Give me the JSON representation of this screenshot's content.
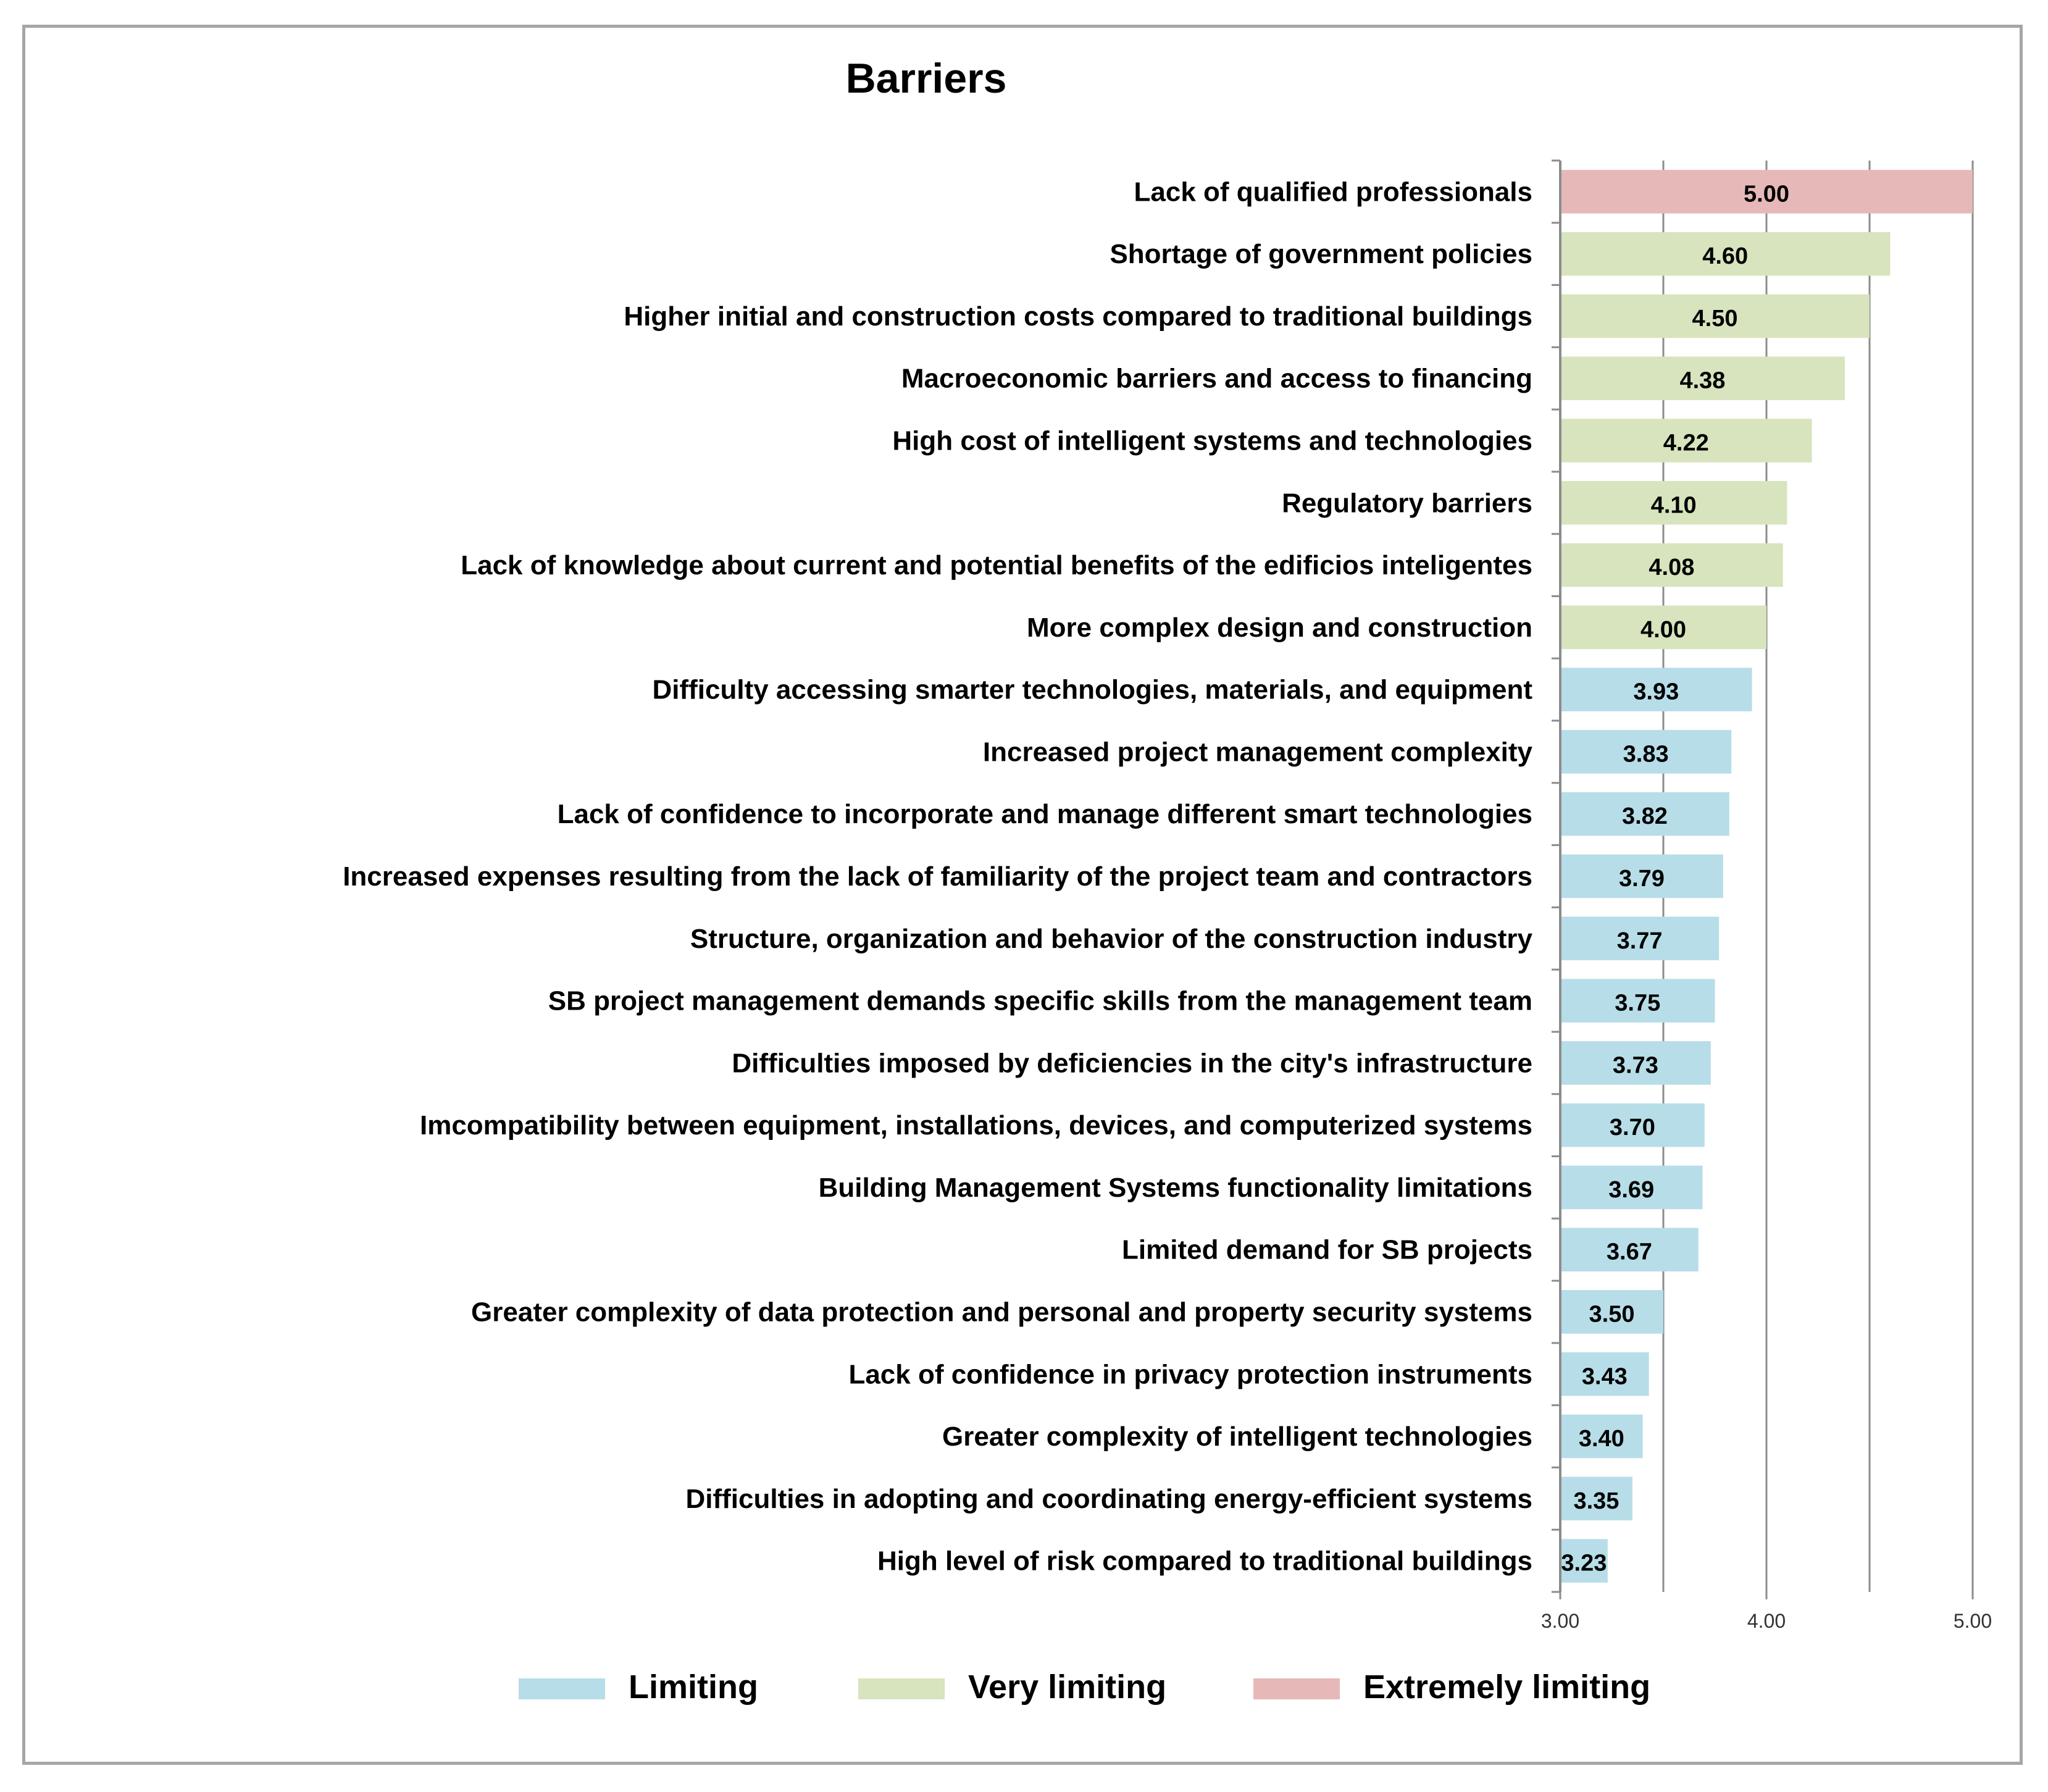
{
  "chart_data": {
    "type": "bar",
    "orientation": "horizontal",
    "title": "Barriers",
    "xlabel": "",
    "ylabel": "",
    "xlim": [
      3.0,
      5.0
    ],
    "ticks": [
      3.0,
      4.0,
      5.0
    ],
    "tick_labels": [
      "3.00",
      "4.00",
      "5.00"
    ],
    "grid": true,
    "legend_position": "bottom",
    "colors": {
      "Limiting": "#b7dde8",
      "Very limiting": "#d7e4bd",
      "Extremely limiting": "#e6b9b8"
    },
    "legend": [
      "Limiting",
      "Very limiting",
      "Extremely limiting"
    ],
    "bars": [
      {
        "label": "Lack of qualified professionals",
        "value": 5.0,
        "value_label": "5.00",
        "category": "Extremely limiting"
      },
      {
        "label": "Shortage of government policies",
        "value": 4.6,
        "value_label": "4.60",
        "category": "Very limiting"
      },
      {
        "label": "Higher initial and construction costs compared to traditional buildings",
        "value": 4.5,
        "value_label": "4.50",
        "category": "Very limiting"
      },
      {
        "label": "Macroeconomic barriers and access to financing",
        "value": 4.38,
        "value_label": "4.38",
        "category": "Very limiting"
      },
      {
        "label": "High cost of  intelligent systems and technologies",
        "value": 4.22,
        "value_label": "4.22",
        "category": "Very limiting"
      },
      {
        "label": "Regulatory barriers",
        "value": 4.1,
        "value_label": "4.10",
        "category": "Very limiting"
      },
      {
        "label": "Lack of knowledge about current and potential benefits of the edificios inteligentes",
        "value": 4.08,
        "value_label": "4.08",
        "category": "Very limiting"
      },
      {
        "label": "More complex design and construction",
        "value": 4.0,
        "value_label": "4.00",
        "category": "Very limiting"
      },
      {
        "label": "Difficulty accessing smarter technologies, materials, and equipment",
        "value": 3.93,
        "value_label": "3.93",
        "category": "Limiting"
      },
      {
        "label": "Increased project management complexity",
        "value": 3.83,
        "value_label": "3.83",
        "category": "Limiting"
      },
      {
        "label": "Lack of confidence to incorporate and manage different smart technologies",
        "value": 3.82,
        "value_label": "3.82",
        "category": "Limiting"
      },
      {
        "label": "Increased expenses resulting from the lack of familiarity of the project team and contractors",
        "value": 3.79,
        "value_label": "3.79",
        "category": "Limiting"
      },
      {
        "label": "Structure, organization and behavior of the construction industry",
        "value": 3.77,
        "value_label": "3.77",
        "category": "Limiting"
      },
      {
        "label": "SB project management demands specific skills from the management team",
        "value": 3.75,
        "value_label": "3.75",
        "category": "Limiting"
      },
      {
        "label": "Difficulties imposed by deficiencies in the city's infrastructure",
        "value": 3.73,
        "value_label": "3.73",
        "category": "Limiting"
      },
      {
        "label": "Imcompatibility between  equipment, installations, devices, and computerized systems",
        "value": 3.7,
        "value_label": "3.70",
        "category": "Limiting"
      },
      {
        "label": "Building Management Systems functionality  limitations",
        "value": 3.69,
        "value_label": "3.69",
        "category": "Limiting"
      },
      {
        "label": "Limited demand for SB projects",
        "value": 3.67,
        "value_label": "3.67",
        "category": "Limiting"
      },
      {
        "label": "Greater complexity of data protection and personal and property security systems",
        "value": 3.5,
        "value_label": "3.50",
        "category": "Limiting"
      },
      {
        "label": "Lack of confidence in privacy protection instruments",
        "value": 3.43,
        "value_label": "3.43",
        "category": "Limiting"
      },
      {
        "label": "Greater complexity of intelligent technologies",
        "value": 3.4,
        "value_label": "3.40",
        "category": "Limiting"
      },
      {
        "label": "Difficulties in adopting and coordinating energy-efficient systems",
        "value": 3.35,
        "value_label": "3.35",
        "category": "Limiting"
      },
      {
        "label": "High level of risk compared to traditional buildings",
        "value": 3.23,
        "value_label": "3.23",
        "category": "Limiting"
      }
    ]
  }
}
